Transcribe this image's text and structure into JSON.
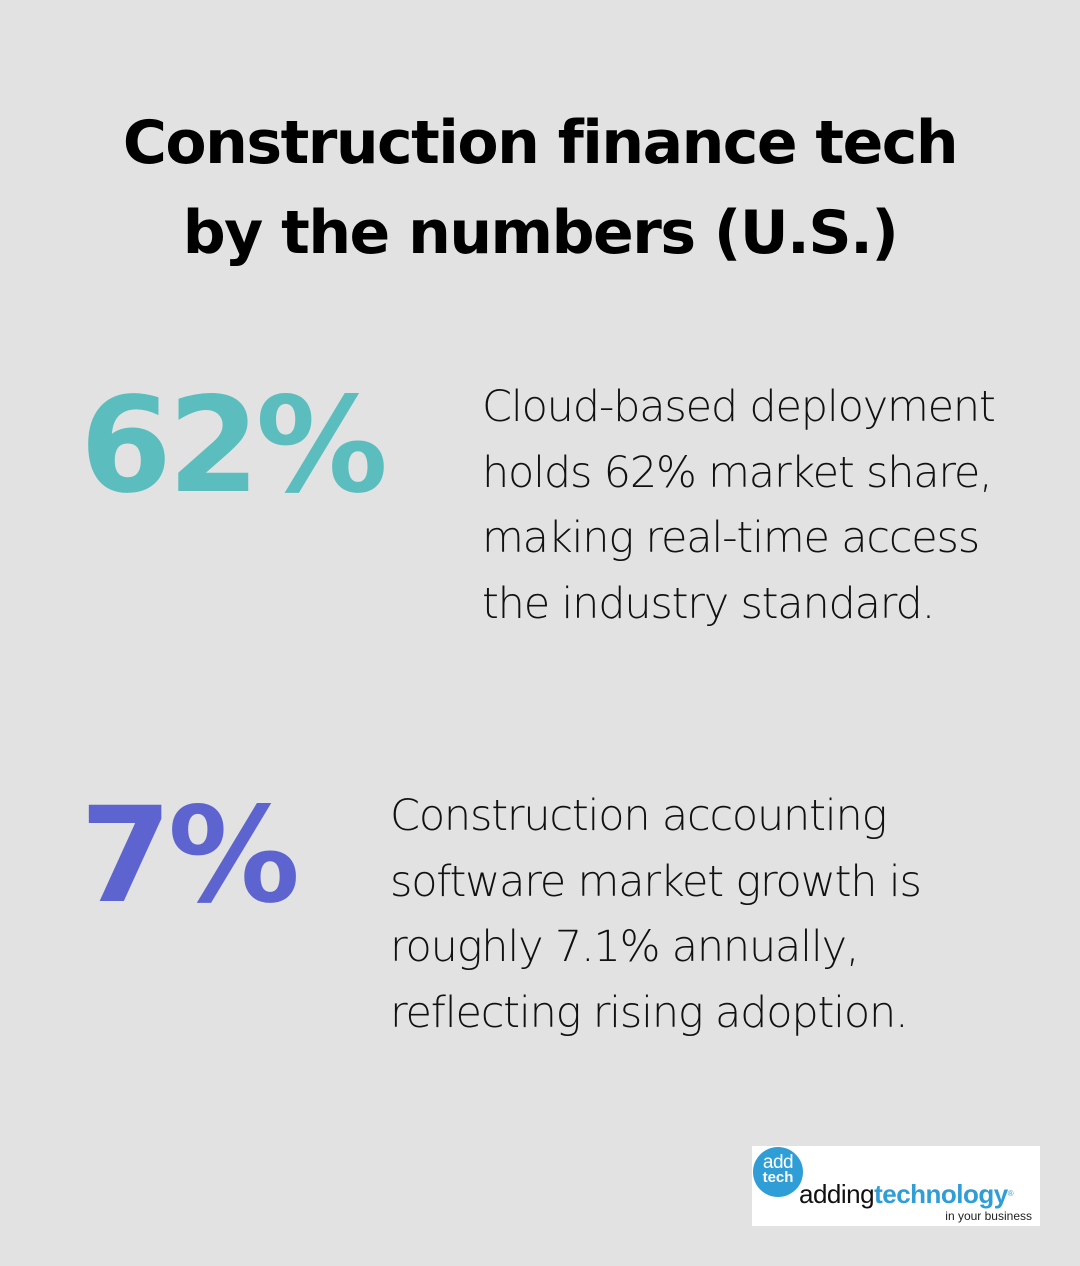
{
  "header": {
    "title_line1": "Construction finance tech",
    "title_line2": "by the numbers (U.S.)"
  },
  "stats": [
    {
      "value": "62%",
      "color": "#5bbdbe",
      "description": "Cloud-based deployment holds 62% market share, making real-time access the industry standard."
    },
    {
      "value": "7%",
      "color": "#5e64cf",
      "description": "Construction accounting software market growth is roughly 7.1% annually, reflecting rising adoption."
    }
  ],
  "logo": {
    "circle_top": "add",
    "circle_bottom": "tech",
    "word_plain": "adding",
    "word_bold": "technology",
    "registered": "®",
    "tagline": "in your business",
    "brand_color": "#2f9dd6"
  },
  "colors": {
    "background": "#e1e2e1",
    "accent_teal": "#5bbdbe",
    "accent_indigo": "#5e64cf"
  }
}
